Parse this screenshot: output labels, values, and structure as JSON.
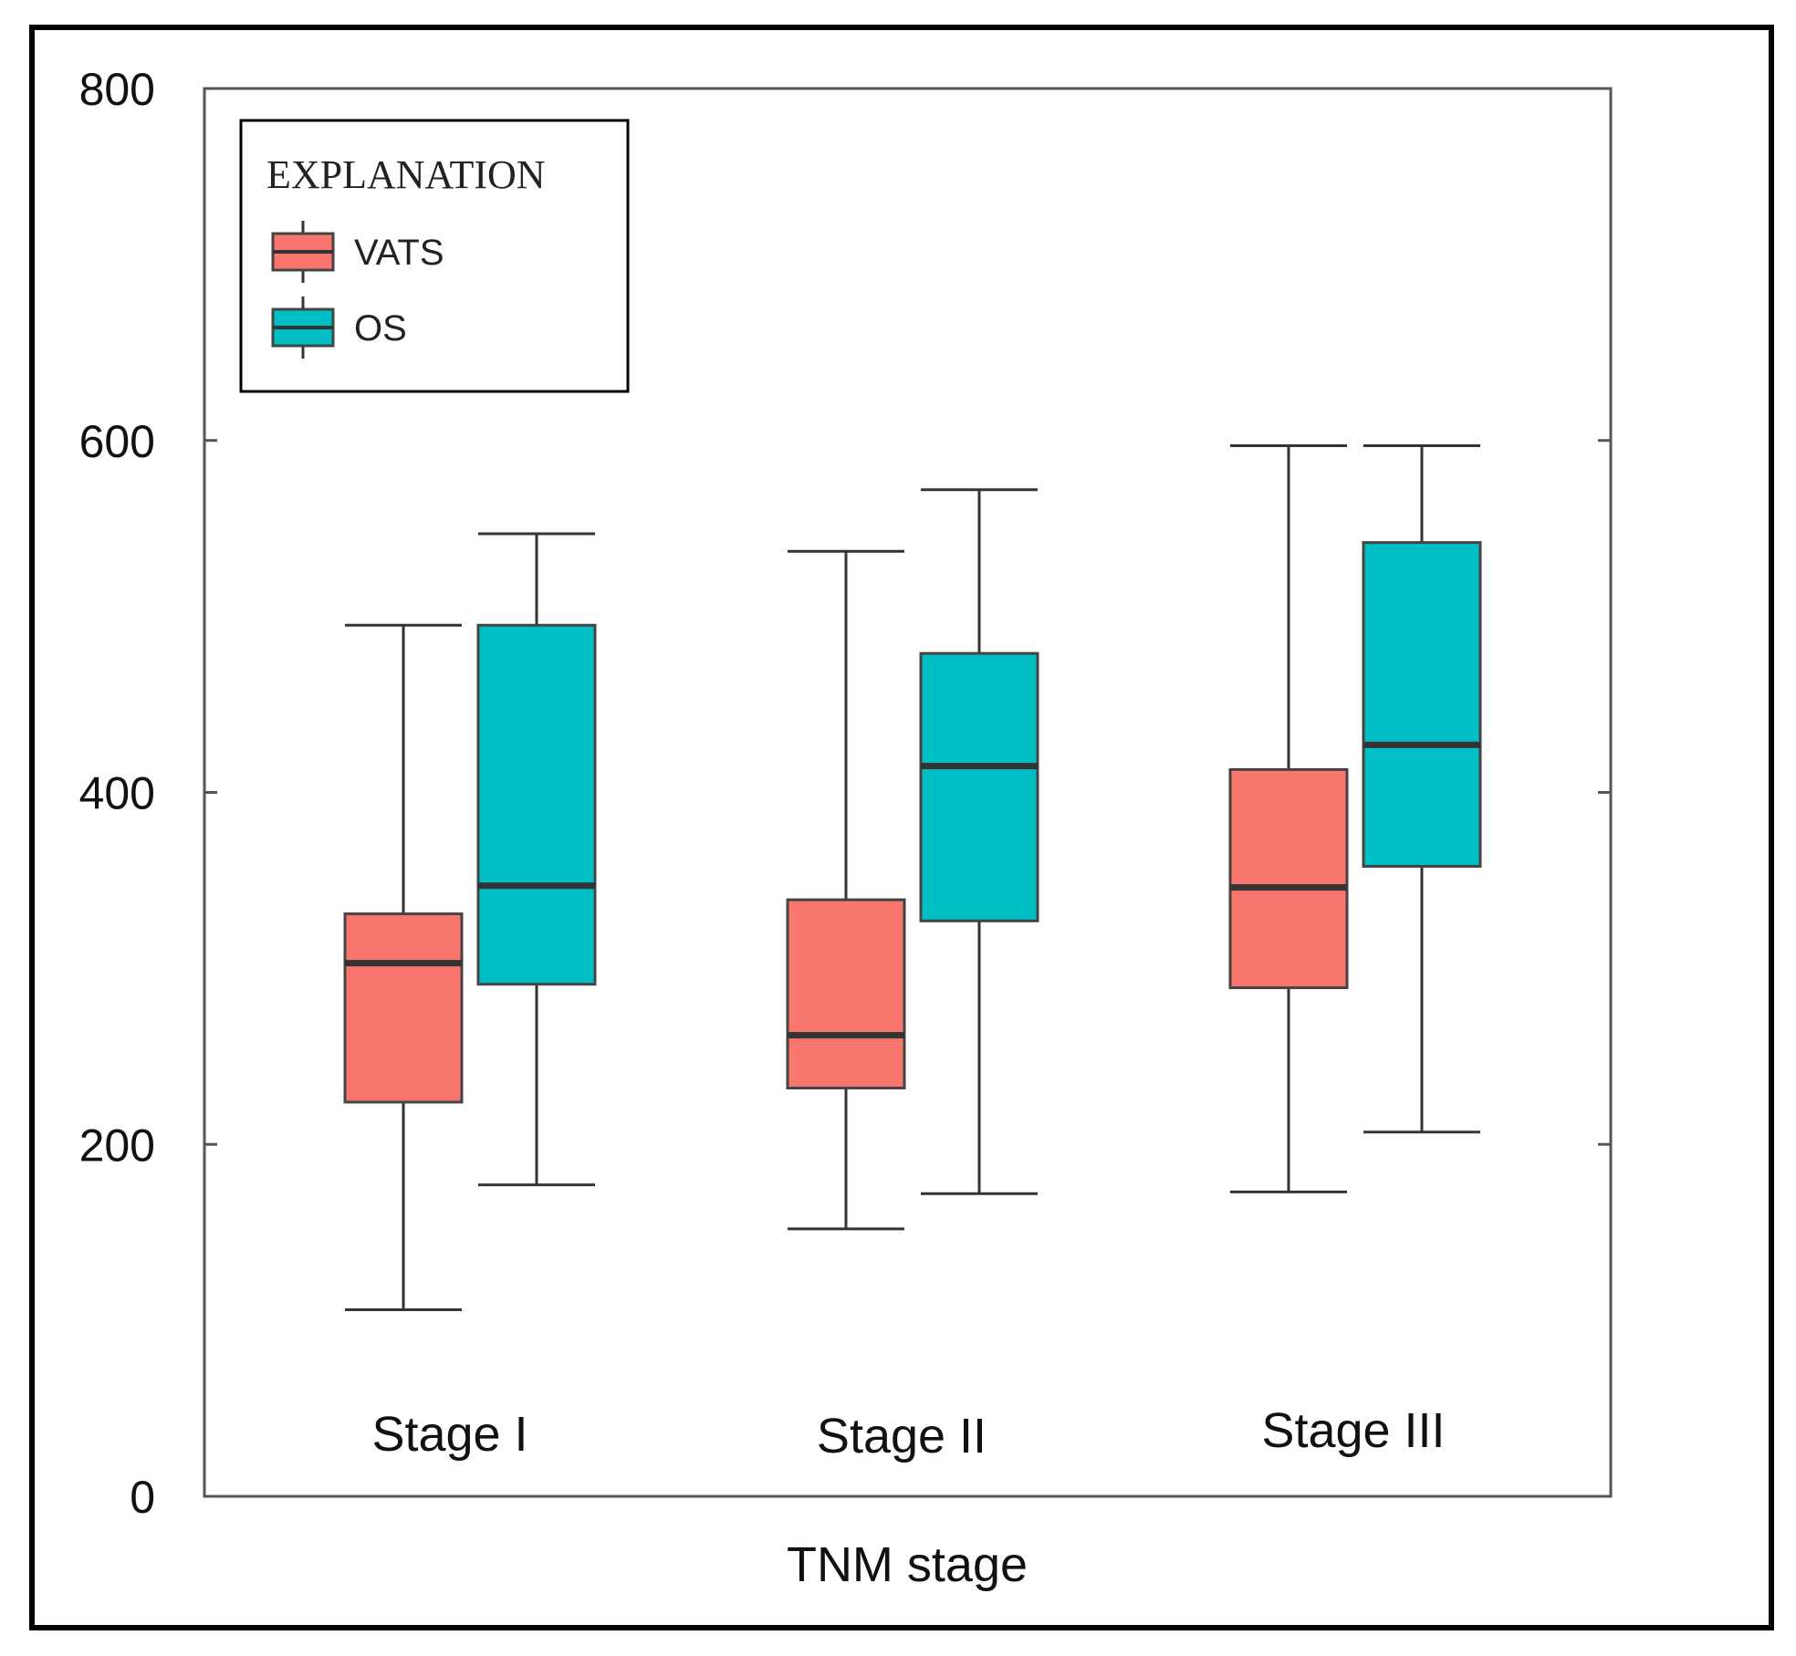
{
  "chart_data": {
    "type": "boxplot",
    "xlabel": "TNM stage",
    "ylabel": "",
    "ylim": [
      0,
      800
    ],
    "yticks": [
      0,
      200,
      400,
      600,
      800
    ],
    "categories": [
      "Stage I",
      "Stage II",
      "Stage III"
    ],
    "legend": {
      "title": "EXPLANATION",
      "placement": "top-left"
    },
    "series": [
      {
        "name": "VATS",
        "color": "#F8766D",
        "boxes": [
          {
            "min": 106,
            "q1": 224,
            "median": 303,
            "q3": 331,
            "max": 495
          },
          {
            "min": 152,
            "q1": 232,
            "median": 262,
            "q3": 339,
            "max": 537
          },
          {
            "min": 173,
            "q1": 289,
            "median": 346,
            "q3": 413,
            "max": 597
          }
        ]
      },
      {
        "name": "OS",
        "color": "#00BFC4",
        "boxes": [
          {
            "min": 177,
            "q1": 291,
            "median": 347,
            "q3": 495,
            "max": 547
          },
          {
            "min": 172,
            "q1": 327,
            "median": 415,
            "q3": 479,
            "max": 572
          },
          {
            "min": 207,
            "q1": 358,
            "median": 427,
            "q3": 542,
            "max": 597
          }
        ]
      }
    ]
  }
}
